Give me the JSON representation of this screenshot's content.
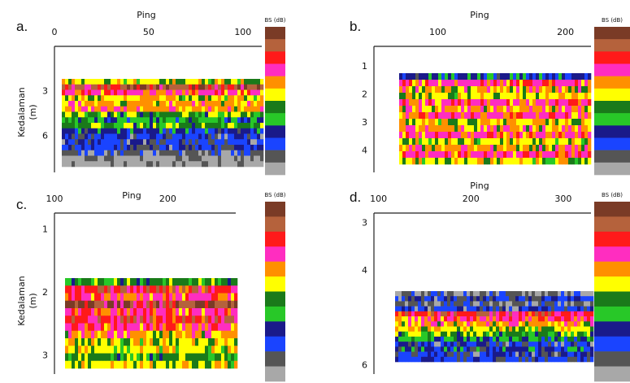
{
  "colors": {
    "colorbar": [
      "#7a3b26",
      "#b5623c",
      "#ff1a1a",
      "#ff2dc0",
      "#ff9000",
      "#ffff00",
      "#1a7a1a",
      "#28c828",
      "#1a1a8a",
      "#1a44ff",
      "#555555",
      "#a8a8a8"
    ],
    "axis_line": "#222222",
    "background": "#ffffff"
  },
  "chart_data": [
    {
      "type": "heatmap",
      "panel_label": "a.",
      "xlabel": "Ping",
      "ylabel": "Kedalaman\n(m)",
      "colorbar_title": "BS (dB)",
      "xlim": [
        0,
        110
      ],
      "ylim": [
        0,
        8.5
      ],
      "x_ticks": [
        0,
        50,
        100
      ],
      "x_tick_labels": [
        "0",
        "50",
        "100"
      ],
      "y_ticks": [
        3,
        6
      ],
      "y_tick_labels": [
        "3",
        "6"
      ],
      "data_rows": [
        {
          "depth": 3.3,
          "class": 6
        },
        {
          "depth": 3.6,
          "class": 2
        },
        {
          "depth": 3.9,
          "class": 4
        },
        {
          "depth": 4.2,
          "class": 6
        },
        {
          "depth": 4.5,
          "class": 5
        },
        {
          "depth": 4.8,
          "class": 5
        },
        {
          "depth": 5.1,
          "class": 7
        },
        {
          "depth": 5.4,
          "class": 8
        },
        {
          "depth": 5.7,
          "class": 7
        },
        {
          "depth": 6.0,
          "class": 9
        },
        {
          "depth": 6.3,
          "class": 10
        },
        {
          "depth": 6.6,
          "class": 10
        },
        {
          "depth": 6.9,
          "class": 10
        },
        {
          "depth": 7.2,
          "class": 11
        },
        {
          "depth": 7.5,
          "class": 12
        },
        {
          "depth": 7.8,
          "class": 12
        }
      ]
    },
    {
      "type": "heatmap",
      "panel_label": "b.",
      "xlabel": "Ping",
      "ylabel": "",
      "colorbar_title": "BS (dB)",
      "xlim": [
        50,
        220
      ],
      "ylim": [
        0.3,
        4.8
      ],
      "x_ticks": [
        100,
        200
      ],
      "x_tick_labels": [
        "100",
        "200"
      ],
      "y_ticks": [
        1,
        2,
        3,
        4
      ],
      "y_tick_labels": [
        "1",
        "2",
        "3",
        "4"
      ],
      "data_rows": [
        {
          "depth": 1.7,
          "class": 9
        },
        {
          "depth": 1.9,
          "class": 4
        },
        {
          "depth": 2.1,
          "class": 5
        },
        {
          "depth": 2.3,
          "class": 6
        },
        {
          "depth": 2.5,
          "class": 4
        },
        {
          "depth": 2.7,
          "class": 5
        },
        {
          "depth": 2.9,
          "class": 4
        },
        {
          "depth": 3.1,
          "class": 6
        },
        {
          "depth": 3.3,
          "class": 5
        },
        {
          "depth": 3.5,
          "class": 4
        },
        {
          "depth": 3.7,
          "class": 6
        },
        {
          "depth": 3.9,
          "class": 5
        },
        {
          "depth": 4.1,
          "class": 4
        },
        {
          "depth": 4.3,
          "class": 6
        }
      ]
    },
    {
      "type": "heatmap",
      "panel_label": "c.",
      "xlabel": "Ping",
      "ylabel": "Kedalaman\n(m)",
      "colorbar_title": "BS (dB)",
      "xlim": [
        100,
        260
      ],
      "ylim": [
        0.75,
        3.3
      ],
      "x_ticks": [
        100,
        200
      ],
      "x_tick_labels": [
        "100",
        "200"
      ],
      "y_ticks": [
        1,
        2,
        3
      ],
      "y_tick_labels": [
        "1",
        "2",
        "3"
      ],
      "data_rows": [
        {
          "depth": 2.05,
          "class": 7
        },
        {
          "depth": 2.15,
          "class": 3
        },
        {
          "depth": 2.25,
          "class": 4
        },
        {
          "depth": 2.35,
          "class": 2
        },
        {
          "depth": 2.45,
          "class": 4
        },
        {
          "depth": 2.55,
          "class": 3
        },
        {
          "depth": 2.65,
          "class": 4
        },
        {
          "depth": 2.75,
          "class": 5
        },
        {
          "depth": 2.85,
          "class": 6
        },
        {
          "depth": 2.95,
          "class": 6
        },
        {
          "depth": 3.05,
          "class": 7
        },
        {
          "depth": 3.15,
          "class": 6
        }
      ]
    },
    {
      "type": "heatmap",
      "panel_label": "d.",
      "xlabel": "Ping",
      "ylabel": "",
      "colorbar_title": "BS (dB)",
      "xlim": [
        95,
        330
      ],
      "ylim": [
        2.8,
        6.2
      ],
      "x_ticks": [
        100,
        200,
        300
      ],
      "x_tick_labels": [
        "100",
        "200",
        "300"
      ],
      "y_ticks": [
        3,
        4,
        6
      ],
      "y_tick_labels": [
        "3",
        "4",
        "6"
      ],
      "data_rows": [
        {
          "depth": 3.2,
          "class": 11
        },
        {
          "depth": 3.4,
          "class": 10
        },
        {
          "depth": 3.6,
          "class": 11
        },
        {
          "depth": 3.8,
          "class": 10
        },
        {
          "depth": 4.0,
          "class": 3
        },
        {
          "depth": 4.2,
          "class": 4
        },
        {
          "depth": 4.4,
          "class": 5
        },
        {
          "depth": 4.6,
          "class": 6
        },
        {
          "depth": 4.8,
          "class": 7
        },
        {
          "depth": 5.0,
          "class": 8
        },
        {
          "depth": 5.2,
          "class": 10
        },
        {
          "depth": 5.4,
          "class": 9
        },
        {
          "depth": 5.6,
          "class": 10
        },
        {
          "depth": 5.8,
          "class": 10
        }
      ]
    }
  ]
}
